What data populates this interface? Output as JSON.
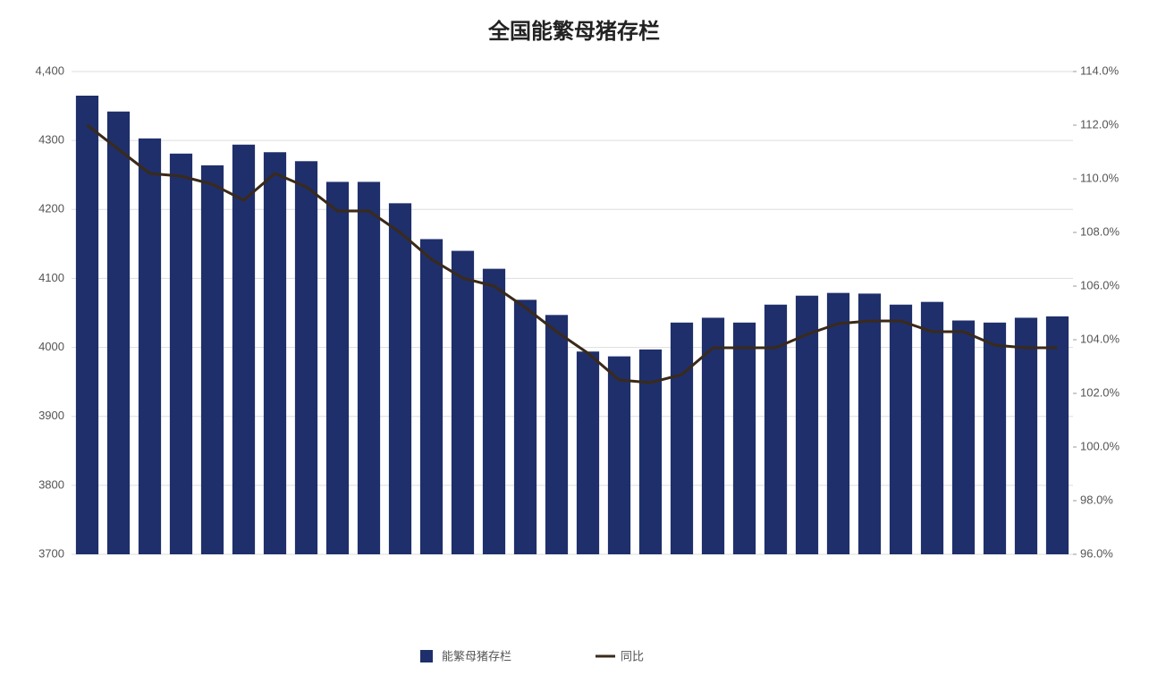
{
  "chart_data": {
    "type": "bar_line",
    "title": "全国能繁母猪存栏",
    "categories": [
      null,
      null,
      null,
      null,
      null,
      null,
      null,
      null,
      null,
      null,
      null,
      null,
      null,
      null,
      null,
      null,
      null,
      null,
      null,
      null,
      null,
      null,
      null,
      null,
      null,
      null,
      null,
      null,
      null,
      null,
      null,
      null
    ],
    "series": [
      {
        "name": "能繁母猪存栏",
        "color": "#1f2f6b",
        "kind": "bar",
        "values": [
          4365,
          4342,
          4303,
          4281,
          4264,
          4294,
          4283,
          4270,
          4240,
          4240,
          4209,
          4157,
          4140,
          4114,
          4069,
          4047,
          3994,
          3987,
          3997,
          4036,
          4043,
          4036,
          4062,
          4075,
          4079,
          4078,
          4062,
          4066,
          4039,
          4036,
          4043,
          4045
        ]
      },
      {
        "name": "同比",
        "color": "#3a2a1a",
        "kind": "line",
        "axis": "y2",
        "values": [
          112.0,
          111.1,
          110.2,
          110.1,
          109.8,
          109.2,
          110.2,
          109.7,
          108.8,
          108.8,
          108.0,
          107.0,
          106.3,
          106.0,
          105.2,
          104.3,
          103.5,
          102.5,
          102.4,
          102.7,
          103.7,
          103.7,
          103.7,
          104.2,
          104.6,
          104.7,
          104.7,
          104.3,
          104.3,
          103.8,
          103.7,
          103.7
        ]
      }
    ],
    "ylim": [
      3700,
      4400
    ],
    "yticks": [
      3700,
      3800,
      3900,
      4000,
      4100,
      4200,
      4300,
      {
        "value": 4400,
        "label": "4,400"
      }
    ],
    "y2lim": [
      96,
      114
    ],
    "y2ticks": [
      {
        "value": 96,
        "label": "96.0%"
      },
      {
        "value": 98,
        "label": "98.0%"
      },
      {
        "value": 100,
        "label": "100.0%"
      },
      {
        "value": 102,
        "label": "102.0%"
      },
      {
        "value": 104,
        "label": "104.0%"
      },
      {
        "value": 106,
        "label": "106.0%"
      },
      {
        "value": 108,
        "label": "108.0%"
      },
      {
        "value": 110,
        "label": "110.0%"
      },
      {
        "value": 112,
        "label": "112.0%"
      },
      {
        "value": 114,
        "label": "114.0%"
      }
    ],
    "grid": true
  }
}
